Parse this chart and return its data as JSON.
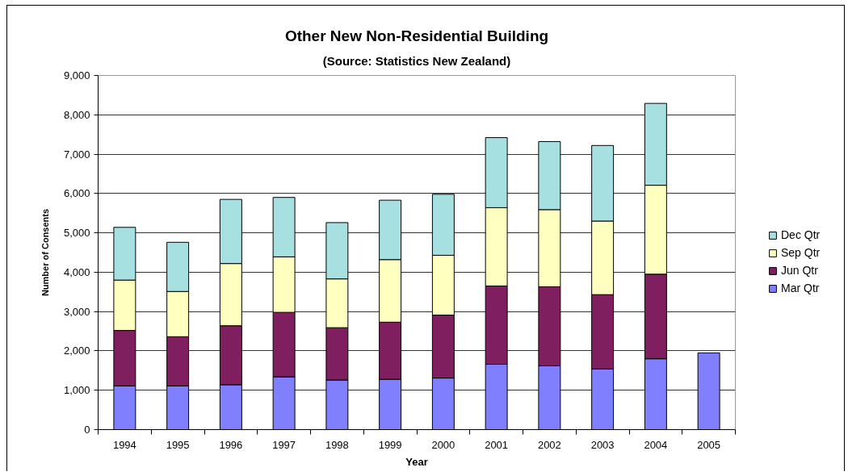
{
  "chart_data": {
    "type": "bar",
    "stacked": true,
    "title": "Other New Non-Residential Building",
    "subtitle": "(Source: Statistics New Zealand)",
    "xlabel": "Year",
    "ylabel": "Number of Consents",
    "categories": [
      "1994",
      "1995",
      "1996",
      "1997",
      "1998",
      "1999",
      "2000",
      "2001",
      "2002",
      "2003",
      "2004",
      "2005"
    ],
    "series": [
      {
        "name": "Mar Qtr",
        "color": "#8080ff",
        "values": [
          1110,
          1110,
          1140,
          1340,
          1260,
          1280,
          1310,
          1660,
          1620,
          1540,
          1800,
          1950
        ]
      },
      {
        "name": "Jun Qtr",
        "color": "#7f1f5f",
        "values": [
          1410,
          1250,
          1500,
          1640,
          1330,
          1450,
          1600,
          1990,
          2010,
          1890,
          2150,
          null
        ]
      },
      {
        "name": "Sep Qtr",
        "color": "#ffffc0",
        "values": [
          1280,
          1150,
          1580,
          1410,
          1240,
          1590,
          1520,
          1990,
          1960,
          1870,
          2260,
          null
        ]
      },
      {
        "name": "Dec Qtr",
        "color": "#a6e0e0",
        "values": [
          1340,
          1250,
          1630,
          1510,
          1430,
          1510,
          1550,
          1780,
          1730,
          1920,
          2080,
          null
        ]
      }
    ],
    "ylim": [
      0,
      9000
    ],
    "yticks": [
      0,
      {
        "value": 1000,
        "label": "1,000"
      },
      {
        "value": 2000,
        "label": "2,000"
      },
      {
        "value": 3000,
        "label": "3,000"
      },
      {
        "value": 4000,
        "label": "4,000"
      },
      {
        "value": 5000,
        "label": "5,000"
      },
      {
        "value": 6000,
        "label": "6,000"
      },
      {
        "value": 7000,
        "label": "7,000"
      },
      {
        "value": 8000,
        "label": "8,000"
      },
      {
        "value": 9000,
        "label": "9,000"
      }
    ],
    "grid": "y",
    "legend": "right"
  }
}
